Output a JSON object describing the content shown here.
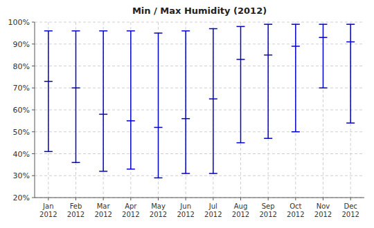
{
  "chart_data": {
    "type": "range",
    "title": "Min / Max Humidity (2012)",
    "categories": [
      "Jan\n2012",
      "Feb\n2012",
      "Mar\n2012",
      "Apr\n2012",
      "May\n2012",
      "Jun\n2012",
      "Jul\n2012",
      "Aug\n2012",
      "Sep\n2012",
      "Oct\n2012",
      "Nov\n2012",
      "Dec\n2012"
    ],
    "min": [
      41,
      36,
      32,
      33,
      29,
      31,
      31,
      45,
      47,
      50,
      70,
      54
    ],
    "max": [
      96,
      96,
      96,
      96,
      95,
      96,
      97,
      98,
      99,
      99,
      99,
      99
    ],
    "values": [
      73,
      70,
      58,
      55,
      52,
      56,
      65,
      83,
      85,
      89,
      93,
      91
    ],
    "color": "#0000CC",
    "ylim": [
      20,
      100
    ],
    "yticks": [
      {
        "value": 20,
        "label": "20%"
      },
      {
        "value": 30,
        "label": "30%"
      },
      {
        "value": 40,
        "label": "40%"
      },
      {
        "value": 50,
        "label": "50%"
      },
      {
        "value": 60,
        "label": "60%"
      },
      {
        "value": 70,
        "label": "70%"
      },
      {
        "value": 80,
        "label": "80%"
      },
      {
        "value": 90,
        "label": "90%"
      },
      {
        "value": 100,
        "label": "100%"
      }
    ],
    "grid": true
  }
}
